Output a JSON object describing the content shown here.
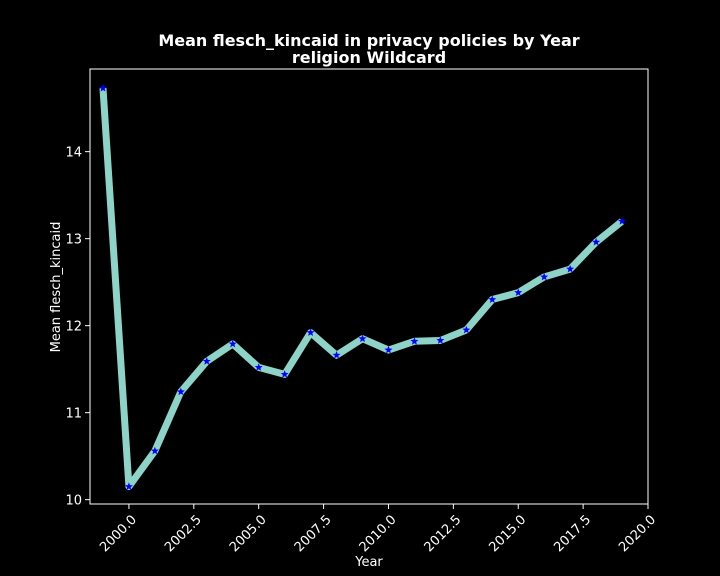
{
  "chart_data": {
    "type": "line",
    "title": [
      "Mean flesch_kincaid in privacy policies by Year",
      "religion Wildcard"
    ],
    "xlabel": "Year",
    "ylabel": "Mean flesch_kincaid",
    "xlim": [
      1998.5,
      2020.0
    ],
    "ylim": [
      9.95,
      14.95
    ],
    "xticks": [
      2000.0,
      2002.5,
      2005.0,
      2007.5,
      2010.0,
      2012.5,
      2015.0,
      2017.5,
      2020.0
    ],
    "xtick_labels": [
      "2000.0",
      "2002.5",
      "2005.0",
      "2007.5",
      "2010.0",
      "2012.5",
      "2015.0",
      "2017.5",
      "2020.0"
    ],
    "yticks": [
      10,
      11,
      12,
      13,
      14
    ],
    "ytick_labels": [
      "10",
      "11",
      "12",
      "13",
      "14"
    ],
    "grid": false,
    "line_color": "#8dd3c7",
    "marker_color": "#0000ff",
    "marker": "star",
    "background": "#000000",
    "series": [
      {
        "x": [
          1999,
          2000,
          2001,
          2002,
          2003,
          2004,
          2005,
          2006,
          2007,
          2008,
          2009,
          2010,
          2011,
          2012,
          2013,
          2014,
          2015,
          2016,
          2017,
          2018,
          2019
        ],
        "values": [
          14.73,
          10.15,
          10.56,
          11.24,
          11.59,
          11.79,
          11.52,
          11.44,
          11.92,
          11.66,
          11.85,
          11.72,
          11.82,
          11.83,
          11.95,
          12.3,
          12.38,
          12.56,
          12.65,
          12.96,
          13.2
        ]
      }
    ]
  }
}
